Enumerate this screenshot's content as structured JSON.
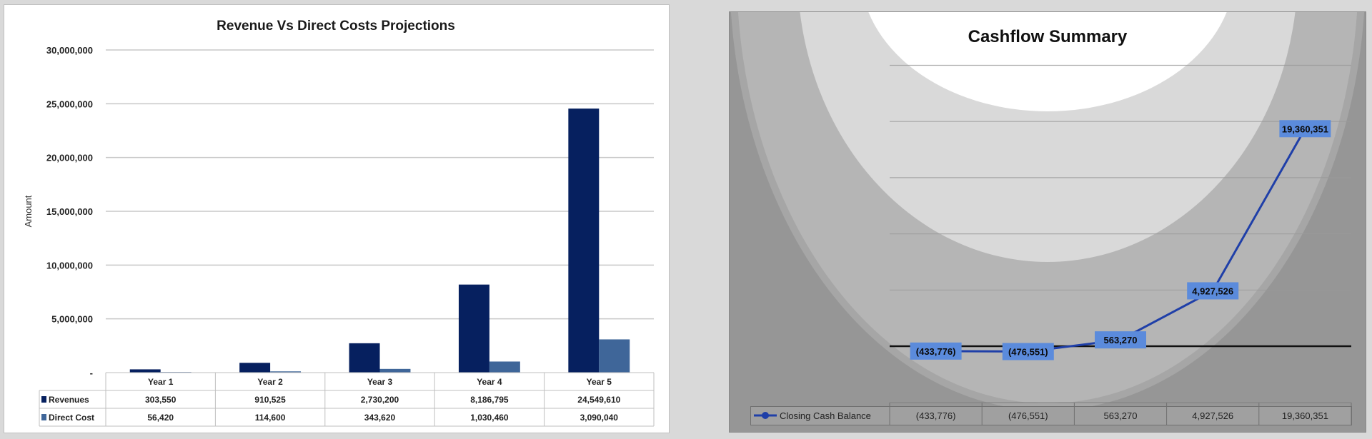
{
  "colors": {
    "page_background": "#d9d9d9",
    "revenues": "#06205f",
    "direct_cost": "#3f6699",
    "cash_line": "#1f3fa8",
    "cash_label_box": "#5b8bdc"
  },
  "chart_data": [
    {
      "type": "bar",
      "title": "Revenue Vs Direct Costs Projections",
      "xlabel": "",
      "ylabel": "Amount",
      "categories": [
        "Year 1",
        "Year 2",
        "Year 3",
        "Year 4",
        "Year 5"
      ],
      "ylim": [
        0,
        30000000
      ],
      "yticks": [
        0,
        5000000,
        10000000,
        15000000,
        20000000,
        25000000,
        30000000
      ],
      "ytick_labels": [
        "-",
        "5,000,000",
        "10,000,000",
        "15,000,000",
        "20,000,000",
        "25,000,000",
        "30,000,000"
      ],
      "grid": true,
      "legend": "data-table",
      "series": [
        {
          "name": "Revenues",
          "values": [
            303550,
            910525,
            2730200,
            8186795,
            24549610
          ],
          "labels": [
            "303,550",
            "910,525",
            "2,730,200",
            "8,186,795",
            "24,549,610"
          ]
        },
        {
          "name": "Direct Cost",
          "values": [
            56420,
            114600,
            343620,
            1030460,
            3090040
          ],
          "labels": [
            "56,420",
            "114,600",
            "343,620",
            "1,030,460",
            "3,090,040"
          ]
        }
      ]
    },
    {
      "type": "line",
      "title": "Cashflow Summary",
      "xlabel": "",
      "ylabel": "",
      "ylim": [
        -5000000,
        25000000
      ],
      "grid": true,
      "legend": "data-table",
      "series": [
        {
          "name": "Closing Cash Balance",
          "values": [
            -433776,
            -476551,
            563270,
            4927526,
            19360351
          ],
          "labels": [
            "(433,776)",
            "(476,551)",
            "563,270",
            "4,927,526",
            "19,360,351"
          ]
        }
      ]
    }
  ]
}
